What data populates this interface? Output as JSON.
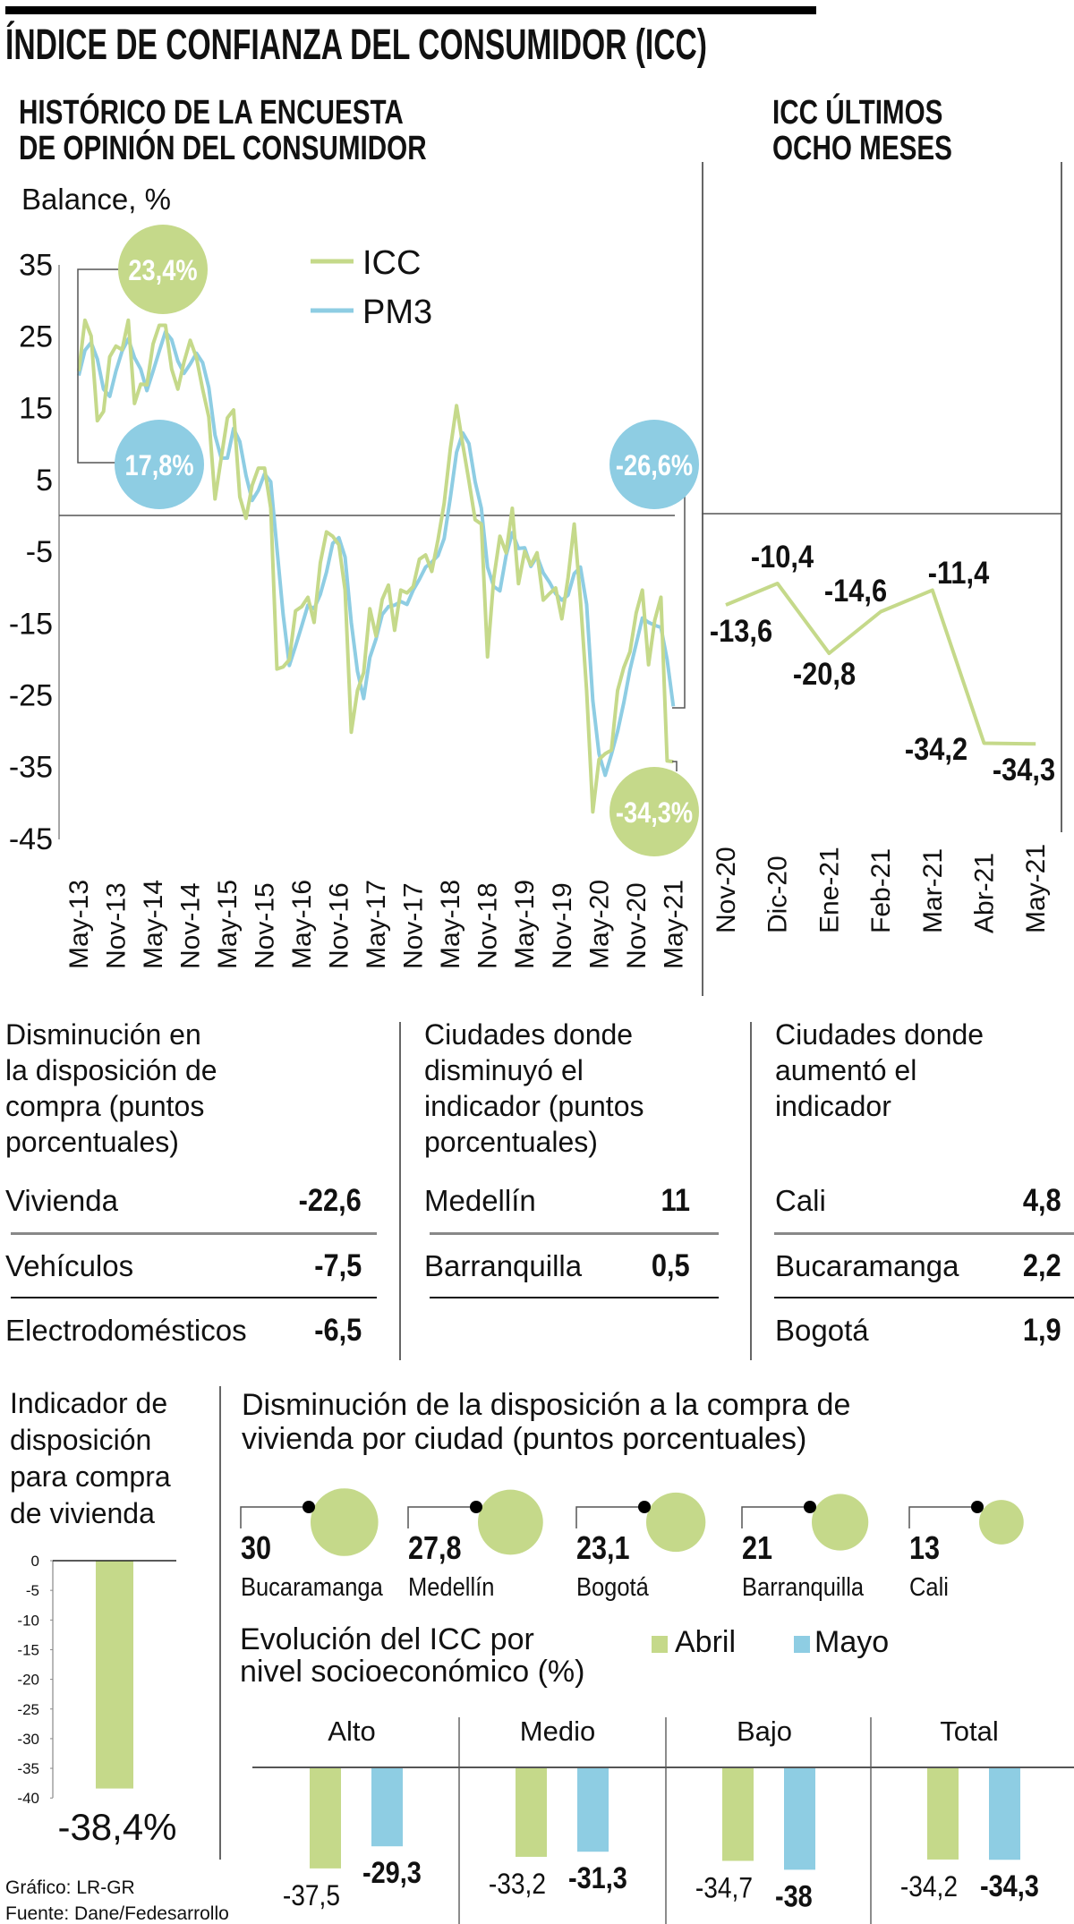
{
  "header": {
    "title": "ÍNDICE DE CONFIANZA DEL CONSUMIDOR (ICC)",
    "left_subtitle": [
      "HISTÓRICO DE LA ENCUESTA",
      "DE OPINIÓN DEL CONSUMIDOR"
    ],
    "right_subtitle": [
      "ICC ÚLTIMOS",
      "OCHO MESES"
    ]
  },
  "colors": {
    "icc": "#c5d98a",
    "pm3": "#8ecde3",
    "abril": "#c5d98a",
    "mayo": "#8ecde3"
  },
  "chart_data": [
    {
      "type": "line",
      "title": "HISTÓRICO DE LA ENCUESTA DE OPINIÓN DEL CONSUMIDOR",
      "ylabel": "Balance, %",
      "ylim": [
        -45,
        35
      ],
      "y_ticks": [
        "35",
        "25",
        "15",
        "5",
        "-5",
        "-15",
        "-25",
        "-35",
        "-45"
      ],
      "y_tick_values": [
        35,
        25,
        15,
        5,
        -5,
        -15,
        -25,
        -35,
        -45
      ],
      "x_start": "May-13",
      "x_end": "May-21",
      "x_frequency": "monthly",
      "x_ticks": [
        "May-13",
        "Nov-13",
        "May-14",
        "Nov-14",
        "May-15",
        "Nov-15",
        "May-16",
        "Nov-16",
        "May-17",
        "Nov-17",
        "May-18",
        "Nov-18",
        "May-19",
        "Nov-19",
        "May-20",
        "Nov-20",
        "May-21"
      ],
      "legend": "top-center",
      "series": [
        {
          "name": "ICC",
          "values": [
            20.1,
            27.2,
            25,
            13.2,
            14.5,
            22.1,
            23.6,
            23.1,
            27.2,
            15.6,
            18.3,
            18.2,
            23.9,
            26.5,
            26.5,
            20.4,
            17.6,
            21.4,
            24.4,
            22,
            17.6,
            13.7,
            2.3,
            8,
            13.6,
            14.7,
            2.6,
            -0.4,
            4.2,
            6.6,
            6.6,
            1,
            -21.4,
            -21.1,
            -20.1,
            -13.3,
            -12.7,
            -11.4,
            -14.9,
            -6.6,
            -2.3,
            -2.9,
            -4.1,
            -10.4,
            -30.2,
            -24.4,
            -21.9,
            -13,
            -16.8,
            -11.7,
            -9.7,
            -16,
            -10.4,
            -10.8,
            -9.9,
            -6.1,
            -5.5,
            -7.8,
            -3.4,
            1.7,
            9.3,
            15.3,
            9.9,
            4.8,
            -0.6,
            -1.2,
            -19.7,
            -8.8,
            -2.9,
            -5.2,
            1,
            -9.5,
            -5,
            -6.9,
            -5.2,
            -11.8,
            -10.9,
            -10.1,
            -14.4,
            -8.7,
            -1.2,
            -11.7,
            -24.4,
            -41.3,
            -34,
            -33.2,
            -32.7,
            -24.4,
            -21.2,
            -19,
            -13.6,
            -10.4,
            -20.8,
            -14.6,
            -11.4,
            -34.2,
            -34.3
          ]
        },
        {
          "name": "PM3",
          "values": [
            19.5,
            23,
            24.1,
            21.8,
            17.6,
            16.6,
            20.1,
            22.9,
            24.6,
            22,
            20.4,
            17.4,
            20.1,
            22.9,
            25.6,
            24.5,
            21.5,
            19.8,
            21.1,
            22.6,
            21.3,
            17.8,
            11.2,
            8,
            8,
            12.1,
            10.3,
            5.6,
            2.1,
            3.5,
            5.8,
            4.7,
            -4.6,
            -13.8,
            -20.9,
            -18.2,
            -15.4,
            -12.5,
            -13,
            -11,
            -7.9,
            -3.9,
            -3.1,
            -5.8,
            -14.9,
            -21.7,
            -25.5,
            -19.8,
            -17.2,
            -13.8,
            -12.7,
            -12.5,
            -12,
            -12.4,
            -10.4,
            -8.9,
            -7.2,
            -6.5,
            -5.6,
            -3.2,
            2.5,
            8.8,
            11.5,
            10,
            4.7,
            1,
            -7.2,
            -9.9,
            -10.5,
            -5.6,
            -2.4,
            -4.6,
            -4.5,
            -7.1,
            -5.7,
            -8,
            -9.3,
            -10.9,
            -11.8,
            -11.1,
            -8.1,
            -7.2,
            -12.4,
            -25.8,
            -33.2,
            -36.2,
            -33.3,
            -30.1,
            -26.1,
            -21.5,
            -17.9,
            -14.3,
            -14.9,
            -15.3,
            -15.6,
            -20.1,
            -26.6
          ]
        }
      ],
      "annotations": [
        {
          "label": "23,4%",
          "series": "ICC"
        },
        {
          "label": "17,8%",
          "series": "PM3"
        },
        {
          "label": "-26,6%",
          "series": "PM3"
        },
        {
          "label": "-34,3%",
          "series": "ICC"
        }
      ]
    },
    {
      "type": "line",
      "title": "ICC ÚLTIMOS OCHO MESES",
      "categories": [
        "Nov-20",
        "Dic-20",
        "Ene-21",
        "Feb-21",
        "Mar-21",
        "Abr-21",
        "May-21"
      ],
      "values": [
        -13.6,
        -10.4,
        -20.8,
        -14.6,
        -11.4,
        -34.2,
        -34.3
      ],
      "labels": [
        "-13,6",
        "-10,4",
        "-20,8",
        "-14,6",
        "-11,4",
        "-34,2",
        "-34,3"
      ]
    },
    {
      "type": "bar",
      "title": [
        "Indicador de",
        "disposición",
        "para compra",
        "de vivienda"
      ],
      "categories": [
        ""
      ],
      "values": [
        -38.4
      ],
      "value_label": "-38,4%",
      "ylim": [
        -40,
        0
      ],
      "y_ticks": [
        "0",
        "-5",
        "-10",
        "-15",
        "-20",
        "-25",
        "-30",
        "-35",
        "-40"
      ]
    },
    {
      "type": "scatter",
      "title": [
        "Disminución de la disposición a la compra de",
        "vivienda por ciudad (puntos porcentuales)"
      ],
      "categories": [
        "Bucaramanga",
        "Medellín",
        "Bogotá",
        "Barranquilla",
        "Cali"
      ],
      "values": [
        30,
        27.8,
        23.1,
        21,
        13
      ],
      "labels": [
        "30",
        "27,8",
        "23,1",
        "21",
        "13"
      ]
    },
    {
      "type": "bar",
      "title": [
        "Evolución del ICC por",
        "nivel socioeconómico (%)"
      ],
      "categories": [
        "Alto",
        "Medio",
        "Bajo",
        "Total"
      ],
      "legend": "top-right",
      "series": [
        {
          "name": "Abril",
          "values": [
            -37.5,
            -33.2,
            -34.7,
            -34.2
          ],
          "labels": [
            "-37,5",
            "-33,2",
            "-34,7",
            "-34,2"
          ]
        },
        {
          "name": "Mayo",
          "values": [
            -29.3,
            -31.3,
            -38,
            -34.3
          ],
          "labels": [
            "-29,3",
            "-31,3",
            "-38",
            "-34,3"
          ]
        }
      ]
    }
  ],
  "tables": [
    {
      "heading": [
        "Disminución en",
        "la disposición de",
        "compra (puntos",
        "porcentuales)"
      ],
      "rows": [
        {
          "label": "Vivienda",
          "value": "-22,6"
        },
        {
          "label": "Vehículos",
          "value": "-7,5"
        },
        {
          "label": "Electrodomésticos",
          "value": "-6,5"
        }
      ]
    },
    {
      "heading": [
        "Ciudades donde",
        "disminuyó el",
        "indicador (puntos",
        "porcentuales)"
      ],
      "rows": [
        {
          "label": "Medellín",
          "value": "11"
        },
        {
          "label": "Barranquilla",
          "value": "0,5"
        }
      ]
    },
    {
      "heading": [
        "Ciudades donde",
        "aumentó el",
        "indicador"
      ],
      "rows": [
        {
          "label": "Cali",
          "value": "4,8"
        },
        {
          "label": "Bucaramanga",
          "value": "2,2"
        },
        {
          "label": "Bogotá",
          "value": "1,9"
        }
      ]
    }
  ],
  "footer": {
    "credit": "Gráfico: LR-GR",
    "source": "Fuente: Dane/Fedesarrollo"
  }
}
